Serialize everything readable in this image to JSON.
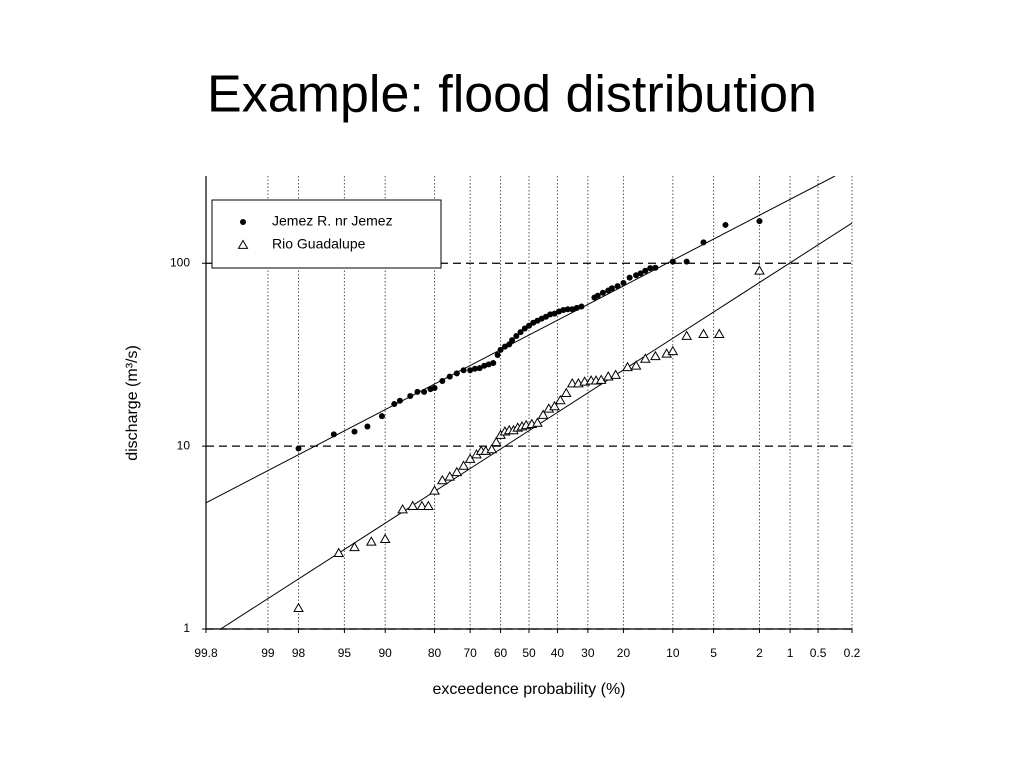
{
  "chart_data": {
    "type": "scatter",
    "title": "Example: flood distribution",
    "xlabel": "exceedence probability (%)",
    "ylabel": "discharge (m³/s)",
    "xscale": "probability",
    "yscale": "log",
    "xlim": [
      99.8,
      0.2
    ],
    "ylim": [
      1,
      300
    ],
    "xticks": [
      99.8,
      99,
      98,
      95,
      90,
      80,
      70,
      60,
      50,
      40,
      30,
      20,
      10,
      5,
      2,
      1,
      0.5,
      0.2
    ],
    "yticks": [
      1,
      10,
      100
    ],
    "grid": true,
    "legend": "upper left",
    "series": [
      {
        "name": "Jemez R. nr Jemez",
        "color": "#000000",
        "marker": "circle",
        "x": [
          98,
          95.9,
          94,
          92.5,
          90.5,
          88.5,
          87.5,
          85.5,
          84,
          82.5,
          81,
          80,
          78,
          76,
          74,
          72,
          70,
          68.5,
          67,
          65.5,
          64,
          62.5,
          61,
          60,
          58.5,
          57,
          56,
          54.5,
          53,
          51.5,
          50,
          48.5,
          47,
          45.5,
          44,
          42.5,
          41,
          39.5,
          38,
          36.5,
          35,
          33.5,
          32,
          28,
          27,
          25.5,
          24,
          23,
          21.5,
          20,
          18.5,
          17,
          16,
          15,
          14,
          13,
          10,
          8,
          6,
          4,
          2
        ],
        "values": [
          9.7,
          11.6,
          12,
          12.8,
          14.6,
          17,
          17.7,
          18.8,
          19.8,
          19.8,
          20.5,
          20.8,
          22.7,
          24,
          25,
          26,
          26,
          26.5,
          26.7,
          27.5,
          28,
          28.5,
          31.5,
          33.6,
          35,
          36,
          38,
          40,
          42,
          44,
          45.5,
          47.3,
          48.5,
          49.8,
          51,
          52.5,
          53,
          54.5,
          55.5,
          56,
          56,
          57,
          58,
          65,
          66.5,
          69,
          71,
          73,
          75,
          78,
          83.5,
          86,
          88,
          91,
          94,
          94.5,
          102,
          102,
          130,
          162,
          170
        ]
      },
      {
        "name": "Rio Guadalupe",
        "color": "#000000",
        "marker": "triangle",
        "x": [
          98,
          95.5,
          94,
          92,
          90,
          87,
          85,
          83,
          81.5,
          80,
          78,
          76,
          74,
          72,
          70,
          68,
          66.5,
          65,
          63,
          61.5,
          60,
          58.5,
          57,
          55.5,
          54,
          52.5,
          51,
          49,
          47,
          45,
          43,
          41,
          39,
          37,
          35,
          33,
          31,
          29,
          27.5,
          26,
          24,
          22,
          19,
          17,
          15,
          13,
          11,
          10,
          8,
          6,
          4.5,
          2
        ],
        "values": [
          1.3,
          2.6,
          2.8,
          3.0,
          3.1,
          4.5,
          4.7,
          4.7,
          4.7,
          5.7,
          6.5,
          6.8,
          7.2,
          7.8,
          8.5,
          9.0,
          9.4,
          9.4,
          9.6,
          10.5,
          11.5,
          12,
          12.2,
          12.2,
          12.6,
          12.8,
          13,
          13.2,
          13.4,
          14.8,
          16,
          16.5,
          17.8,
          19.5,
          22,
          22,
          22.5,
          22.8,
          22.8,
          23,
          24,
          24.5,
          27,
          27.5,
          30,
          31,
          32,
          33,
          40,
          41,
          41,
          91
        ]
      }
    ],
    "fit_lines": [
      {
        "color": "#000000",
        "x": [
          99.8,
          0.32
        ],
        "values": [
          4.9,
          300
        ]
      },
      {
        "color": "#000000",
        "x": [
          99.7,
          0.2
        ],
        "values": [
          1,
          166
        ]
      }
    ]
  }
}
